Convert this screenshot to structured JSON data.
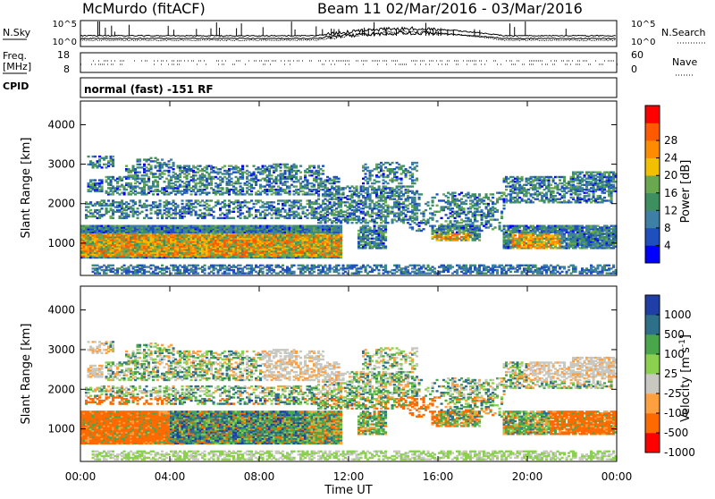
{
  "header": {
    "station": "McMurdo (fitACF)",
    "beam_date": "Beam 11  02/Mar/2016 - 03/Mar/2016"
  },
  "strip": {
    "left_labels": [
      "N.Sky",
      "Freq.",
      "[MHz]",
      "CPID"
    ],
    "right_labels": [
      "N.Search",
      "Nave"
    ],
    "sky_ticks": [
      "10^5",
      "10^0"
    ],
    "search_ticks": [
      "10^5",
      "10^0"
    ],
    "freq_ticks": [
      "18",
      "8"
    ],
    "nave_ticks": [
      "60",
      "0"
    ],
    "cpid_text": "normal (fast) -151 RF"
  },
  "colors": {
    "power": [
      "#0000ff",
      "#1f4fbf",
      "#3e7fa5",
      "#3e8f5f",
      "#6aa84f",
      "#f2c000",
      "#ff8c00",
      "#ff5a00",
      "#ff0000"
    ],
    "velocity": [
      "#ff0000",
      "#ff6a00",
      "#ffa040",
      "#c8c8c0",
      "#8cd050",
      "#4aa64a",
      "#2e6f8a",
      "#1f3fa6"
    ]
  },
  "chart_data": [
    {
      "type": "heatmap",
      "name": "power",
      "ylabel": "Slant Range [km]",
      "ylim": [
        180,
        4600
      ],
      "yticks": [
        "4000",
        "3000",
        "2000",
        "1000"
      ],
      "xlabel": "Time UT",
      "xlim": [
        0,
        24
      ],
      "xticks": [
        "00:00",
        "04:00",
        "08:00",
        "12:00",
        "16:00",
        "20:00",
        "00:00"
      ],
      "colorbar": {
        "label": "Power [dB]",
        "ticks": [
          "28",
          "24",
          "20",
          "16",
          "12",
          "8",
          "4"
        ],
        "range": [
          0,
          32
        ]
      }
    },
    {
      "type": "heatmap",
      "name": "velocity",
      "ylabel": "Slant Range [km]",
      "ylim": [
        180,
        4600
      ],
      "yticks": [
        "4000",
        "3000",
        "2000",
        "1000"
      ],
      "xlabel": "Time UT",
      "xlim": [
        0,
        24
      ],
      "xticks": [
        "00:00",
        "04:00",
        "08:00",
        "12:00",
        "16:00",
        "20:00",
        "00:00"
      ],
      "colorbar": {
        "label": "Velocity [m s",
        "label_exp": "-1",
        "ticks": [
          "1000",
          "500",
          "100",
          "25",
          "-25",
          "-100",
          "-500",
          "-1000"
        ]
      }
    }
  ]
}
